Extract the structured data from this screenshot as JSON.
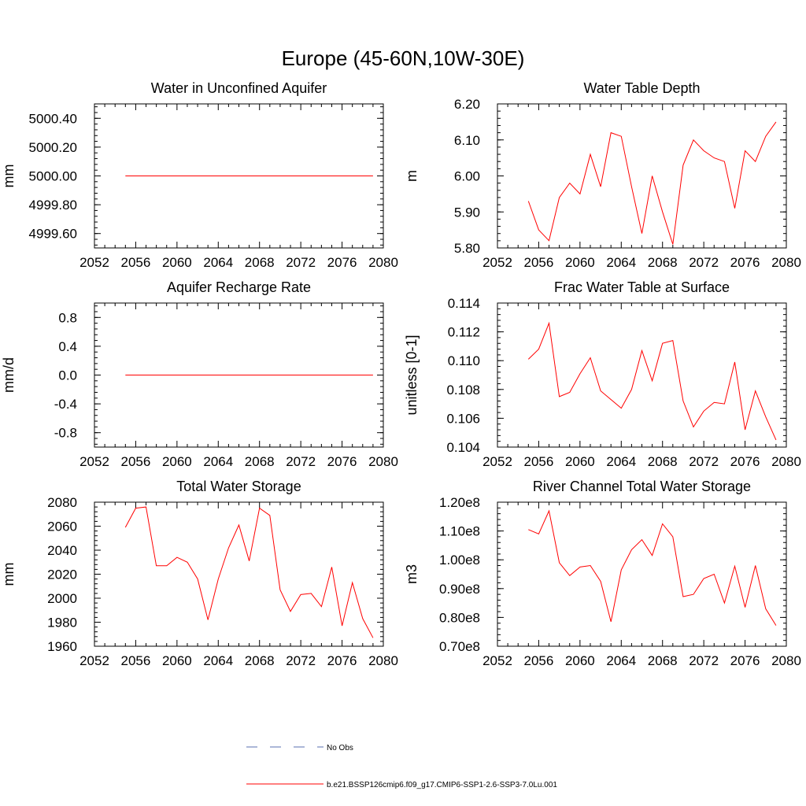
{
  "page_title": "Europe (45-60N,10W-30E)",
  "colors": {
    "model_line": "#ff0000",
    "obs_line": "#5a6fb0",
    "axis": "#000000"
  },
  "legend": {
    "obs_label": "No Obs",
    "model_label": "b.e21.BSSP126cmip6.f09_g17.CMIP6-SSP1-2.6-SSP3-7.0Lu.001"
  },
  "chart_data": [
    {
      "type": "line",
      "title": "Water in Unconfined Aquifer",
      "xlabel": "",
      "ylabel": "mm",
      "xlim": [
        2052,
        2080
      ],
      "ylim": [
        4999.5,
        5000.5
      ],
      "xticks": [
        "2052",
        "2056",
        "2060",
        "2064",
        "2068",
        "2072",
        "2076",
        "2080"
      ],
      "yticks": [
        {
          "value": 4999.6,
          "label": "4999.60"
        },
        {
          "value": 4999.8,
          "label": "4999.80"
        },
        {
          "value": 5000.0,
          "label": "5000.00"
        },
        {
          "value": 5000.2,
          "label": "5000.20"
        },
        {
          "value": 5000.4,
          "label": "5000.40"
        }
      ],
      "x": [
        2055,
        2056,
        2057,
        2058,
        2059,
        2060,
        2061,
        2062,
        2063,
        2064,
        2065,
        2066,
        2067,
        2068,
        2069,
        2070,
        2071,
        2072,
        2073,
        2074,
        2075,
        2076,
        2077,
        2078,
        2079
      ],
      "series": [
        {
          "values": [
            5000,
            5000,
            5000,
            5000,
            5000,
            5000,
            5000,
            5000,
            5000,
            5000,
            5000,
            5000,
            5000,
            5000,
            5000,
            5000,
            5000,
            5000,
            5000,
            5000,
            5000,
            5000,
            5000,
            5000,
            5000
          ]
        }
      ]
    },
    {
      "type": "line",
      "title": "Water Table Depth",
      "xlabel": "",
      "ylabel": "m",
      "xlim": [
        2052,
        2080
      ],
      "ylim": [
        5.8,
        6.2
      ],
      "xticks": [
        "2052",
        "2056",
        "2060",
        "2064",
        "2068",
        "2072",
        "2076",
        "2080"
      ],
      "yticks": [
        {
          "value": 5.8,
          "label": "5.80"
        },
        {
          "value": 5.9,
          "label": "5.90"
        },
        {
          "value": 6.0,
          "label": "6.00"
        },
        {
          "value": 6.1,
          "label": "6.10"
        },
        {
          "value": 6.2,
          "label": "6.20"
        }
      ],
      "x": [
        2055,
        2056,
        2057,
        2058,
        2059,
        2060,
        2061,
        2062,
        2063,
        2064,
        2065,
        2066,
        2067,
        2068,
        2069,
        2070,
        2071,
        2072,
        2073,
        2074,
        2075,
        2076,
        2077,
        2078,
        2079
      ],
      "series": [
        {
          "values": [
            5.93,
            5.85,
            5.82,
            5.94,
            5.98,
            5.95,
            6.06,
            5.97,
            6.12,
            6.11,
            5.97,
            5.84,
            6.0,
            5.9,
            5.81,
            6.03,
            6.1,
            6.07,
            6.05,
            6.04,
            5.91,
            6.07,
            6.04,
            6.11,
            6.15
          ]
        }
      ]
    },
    {
      "type": "line",
      "title": "Aquifer Recharge Rate",
      "xlabel": "",
      "ylabel": "mm/d",
      "xlim": [
        2052,
        2080
      ],
      "ylim": [
        -1.0,
        1.0
      ],
      "xticks": [
        "2052",
        "2056",
        "2060",
        "2064",
        "2068",
        "2072",
        "2076",
        "2080"
      ],
      "yticks": [
        {
          "value": -0.8,
          "label": "-0.8"
        },
        {
          "value": -0.4,
          "label": "-0.4"
        },
        {
          "value": 0.0,
          "label": "0.0"
        },
        {
          "value": 0.4,
          "label": "0.4"
        },
        {
          "value": 0.8,
          "label": "0.8"
        }
      ],
      "x": [
        2055,
        2056,
        2057,
        2058,
        2059,
        2060,
        2061,
        2062,
        2063,
        2064,
        2065,
        2066,
        2067,
        2068,
        2069,
        2070,
        2071,
        2072,
        2073,
        2074,
        2075,
        2076,
        2077,
        2078,
        2079
      ],
      "series": [
        {
          "values": [
            0,
            0,
            0,
            0,
            0,
            0,
            0,
            0,
            0,
            0,
            0,
            0,
            0,
            0,
            0,
            0,
            0,
            0,
            0,
            0,
            0,
            0,
            0,
            0,
            0
          ]
        }
      ]
    },
    {
      "type": "line",
      "title": "Frac Water Table at Surface",
      "xlabel": "",
      "ylabel": "unitless [0-1]",
      "xlim": [
        2052,
        2080
      ],
      "ylim": [
        0.104,
        0.114
      ],
      "xticks": [
        "2052",
        "2056",
        "2060",
        "2064",
        "2068",
        "2072",
        "2076",
        "2080"
      ],
      "yticks": [
        {
          "value": 0.104,
          "label": "0.104"
        },
        {
          "value": 0.106,
          "label": "0.106"
        },
        {
          "value": 0.108,
          "label": "0.108"
        },
        {
          "value": 0.11,
          "label": "0.110"
        },
        {
          "value": 0.112,
          "label": "0.112"
        },
        {
          "value": 0.114,
          "label": "0.114"
        }
      ],
      "x": [
        2055,
        2056,
        2057,
        2058,
        2059,
        2060,
        2061,
        2062,
        2063,
        2064,
        2065,
        2066,
        2067,
        2068,
        2069,
        2070,
        2071,
        2072,
        2073,
        2074,
        2075,
        2076,
        2077,
        2078,
        2079
      ],
      "series": [
        {
          "values": [
            0.1101,
            0.1108,
            0.1126,
            0.1075,
            0.1078,
            0.1091,
            0.1102,
            0.1079,
            0.1073,
            0.1067,
            0.108,
            0.1107,
            0.1086,
            0.1112,
            0.1114,
            0.1072,
            0.1054,
            0.1065,
            0.1071,
            0.107,
            0.1099,
            0.1052,
            0.1079,
            0.1061,
            0.1045
          ]
        }
      ]
    },
    {
      "type": "line",
      "title": "Total Water Storage",
      "xlabel": "",
      "ylabel": "mm",
      "xlim": [
        2052,
        2080
      ],
      "ylim": [
        1960,
        2080
      ],
      "xticks": [
        "2052",
        "2056",
        "2060",
        "2064",
        "2068",
        "2072",
        "2076",
        "2080"
      ],
      "yticks": [
        {
          "value": 1960,
          "label": "1960"
        },
        {
          "value": 1980,
          "label": "1980"
        },
        {
          "value": 2000,
          "label": "2000"
        },
        {
          "value": 2020,
          "label": "2020"
        },
        {
          "value": 2040,
          "label": "2040"
        },
        {
          "value": 2060,
          "label": "2060"
        },
        {
          "value": 2080,
          "label": "2080"
        }
      ],
      "x": [
        2055,
        2056,
        2057,
        2058,
        2059,
        2060,
        2061,
        2062,
        2063,
        2064,
        2065,
        2066,
        2067,
        2068,
        2069,
        2070,
        2071,
        2072,
        2073,
        2074,
        2075,
        2076,
        2077,
        2078,
        2079
      ],
      "series": [
        {
          "values": [
            2059,
            2075,
            2076,
            2027,
            2027,
            2034,
            2030,
            2016,
            1982,
            2016,
            2042,
            2061,
            2031,
            2075,
            2069,
            2007,
            1989,
            2003,
            2004,
            1993,
            2026,
            1977,
            2013,
            1983,
            1967
          ]
        }
      ]
    },
    {
      "type": "line",
      "title": "River Channel Total Water Storage",
      "xlabel": "",
      "ylabel": "m3",
      "xlim": [
        2052,
        2080
      ],
      "ylim": [
        70000000,
        120000000
      ],
      "xticks": [
        "2052",
        "2056",
        "2060",
        "2064",
        "2068",
        "2072",
        "2076",
        "2080"
      ],
      "yticks": [
        {
          "value": 70000000,
          "label": "0.70e8"
        },
        {
          "value": 80000000,
          "label": "0.80e8"
        },
        {
          "value": 90000000,
          "label": "0.90e8"
        },
        {
          "value": 100000000,
          "label": "1.00e8"
        },
        {
          "value": 110000000,
          "label": "1.10e8"
        },
        {
          "value": 120000000,
          "label": "1.20e8"
        }
      ],
      "x": [
        2055,
        2056,
        2057,
        2058,
        2059,
        2060,
        2061,
        2062,
        2063,
        2064,
        2065,
        2066,
        2067,
        2068,
        2069,
        2070,
        2071,
        2072,
        2073,
        2074,
        2075,
        2076,
        2077,
        2078,
        2079
      ],
      "series": [
        {
          "values": [
            110500000,
            109000000,
            117000000,
            99000000,
            94500000,
            97500000,
            98000000,
            92500000,
            78500000,
            96500000,
            103500000,
            107000000,
            101500000,
            112500000,
            108000000,
            87200000,
            88000000,
            93500000,
            95000000,
            85000000,
            97800000,
            83500000,
            98000000,
            83000000,
            77200000
          ]
        }
      ]
    }
  ]
}
